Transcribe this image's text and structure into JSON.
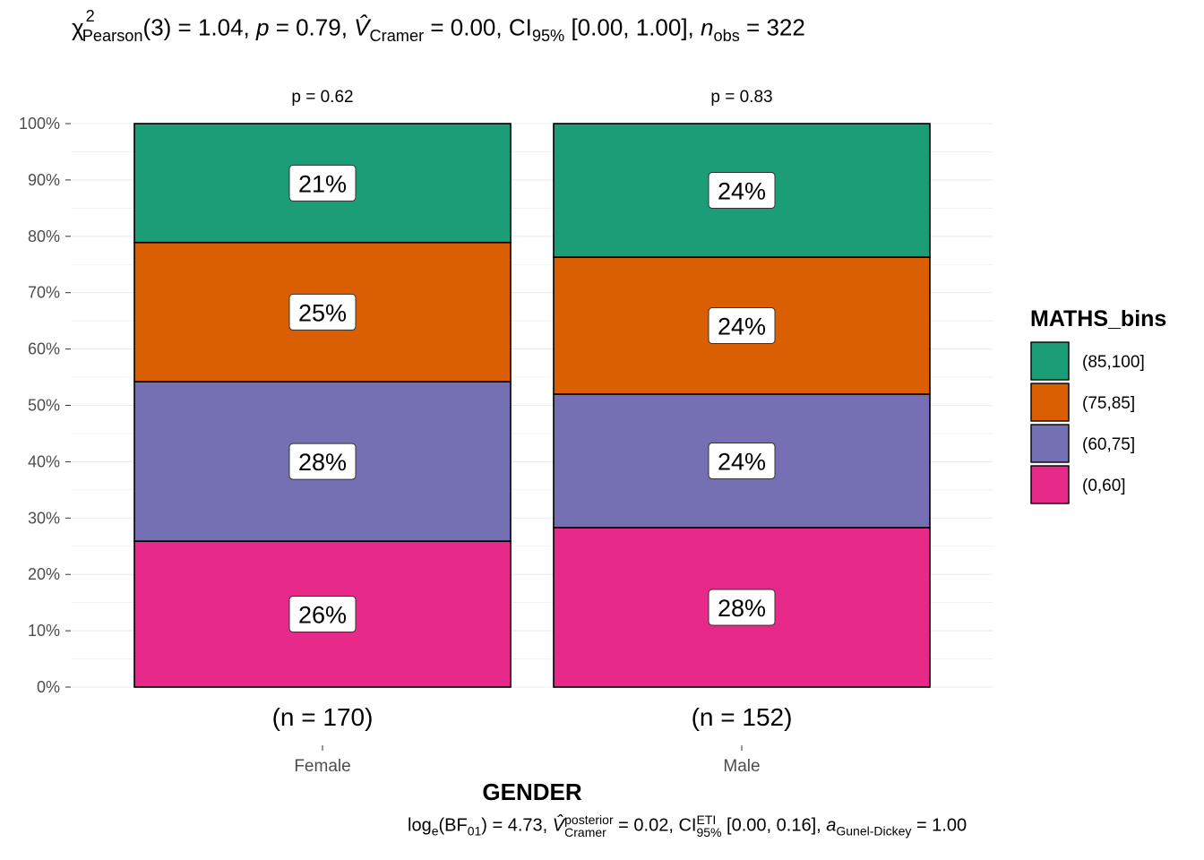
{
  "chart_data": {
    "type": "bar",
    "stacked": "percent",
    "title": "χ²Pearson(3) = 1.04, p = 0.79, V̂Cramer = 0.00, CI95% [0.00, 1.00], nobs = 322",
    "title_parts": {
      "chi": "χ",
      "chi_sup": "2",
      "chi_sub": "Pearson",
      "df": "(3) = 1.04, ",
      "p": "p",
      "p_val": " = 0.79, ",
      "v": "V̂",
      "v_sub": "Cramer",
      "v_val": " = 0.00, CI",
      "ci_sub": "95%",
      "ci_val": " [0.00, 1.00], ",
      "n": "n",
      "n_sub": "obs",
      "n_val": " = 322"
    },
    "caption": "loge(BF01) = 4.73, V̂posterior Cramer = 0.02, CI ETI 95% [0.00, 0.16], aGunel-Dickey = 1.00",
    "caption_parts": {
      "a": "log",
      "a_sub": "e",
      "b": "(BF",
      "b_sub": "01",
      "c": ") = 4.73, ",
      "v": "V̂",
      "v_sup": "posterior",
      "v_sub": "Cramer",
      "d": " = 0.02, CI",
      "ci_sup": "ETI",
      "ci_sub": "95%",
      "e": " [0.00, 0.16], ",
      "g": "a",
      "g_sub": "Gunel-Dickey",
      "h": " = 1.00"
    },
    "xlabel": "GENDER",
    "ylabel": "",
    "ylim": [
      0,
      100
    ],
    "y_ticks": [
      "0%",
      "10%",
      "20%",
      "30%",
      "40%",
      "50%",
      "60%",
      "70%",
      "80%",
      "90%",
      "100%"
    ],
    "categories": [
      "Female",
      "Male"
    ],
    "counts": [
      "(n = 170)",
      "(n = 152)"
    ],
    "pvalues": [
      "p = 0.62",
      "p = 0.83"
    ],
    "legend_title": "MATHS_bins",
    "legend_position": "right",
    "grid": true,
    "series": [
      {
        "name": "(0,60]",
        "color": "#E7298A",
        "values": [
          25.9,
          28.3
        ],
        "labels": [
          "26%",
          "28%"
        ]
      },
      {
        "name": "(60,75]",
        "color": "#7570B3",
        "values": [
          28.3,
          23.7
        ],
        "labels": [
          "28%",
          "24%"
        ]
      },
      {
        "name": "(75,85]",
        "color": "#D95F02",
        "values": [
          24.7,
          24.3
        ],
        "labels": [
          "25%",
          "24%"
        ]
      },
      {
        "name": "(85,100]",
        "color": "#1B9E77",
        "values": [
          21.1,
          23.7
        ],
        "labels": [
          "21%",
          "24%"
        ]
      }
    ]
  }
}
